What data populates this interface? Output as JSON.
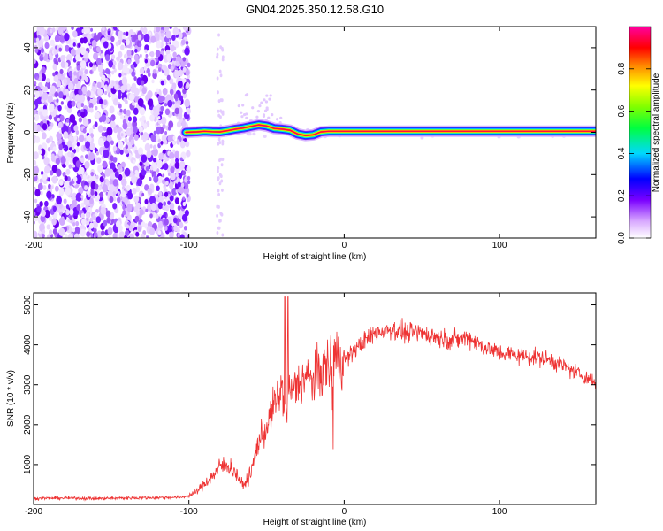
{
  "title": "GN04.2025.350.12.58.G10",
  "chart_data": [
    {
      "type": "heatmap",
      "xlabel": "Height of straight line (km)",
      "ylabel": "Frequency (Hz)",
      "xlim": [
        -200,
        162
      ],
      "ylim": [
        -50,
        50
      ],
      "xticks": [
        -200,
        -100,
        0,
        100
      ],
      "yticks": [
        -40,
        -20,
        0,
        20,
        40
      ],
      "colorbar": {
        "label": "Normalized spectral amplitude",
        "range": [
          0,
          1
        ],
        "ticks": [
          0,
          0.2,
          0.4,
          0.6,
          0.8
        ],
        "tick_labels": [
          "0.0",
          "0.2",
          "0.4",
          "0.6",
          "0.8"
        ]
      },
      "ridge": {
        "x": [
          -102,
          -95,
          -90,
          -85,
          -80,
          -75,
          -70,
          -65,
          -60,
          -55,
          -50,
          -45,
          -40,
          -35,
          -30,
          -25,
          -20,
          -15,
          -10,
          0,
          50,
          100,
          162
        ],
        "freq": [
          0,
          0.2,
          0.5,
          0.3,
          0.2,
          0.8,
          1.5,
          2.0,
          2.8,
          3.5,
          3.0,
          1.8,
          1.5,
          1.0,
          -0.8,
          -1.5,
          -1.2,
          0.2,
          0.5,
          0.5,
          0.5,
          0.5,
          0.5
        ]
      },
      "noise_region_x": [
        -200,
        -100
      ]
    },
    {
      "type": "line",
      "xlabel": "Height of straight line (km)",
      "ylabel": "SNR (10 * v/v)",
      "xlim": [
        -200,
        162
      ],
      "ylim": [
        0,
        5300
      ],
      "xticks": [
        -200,
        -100,
        0,
        100
      ],
      "yticks": [
        1000,
        2000,
        3000,
        4000,
        5000
      ],
      "series": [
        {
          "color": "#ee3333",
          "x": [
            -200,
            -180,
            -160,
            -140,
            -120,
            -105,
            -100,
            -95,
            -90,
            -85,
            -80,
            -75,
            -70,
            -65,
            -60,
            -55,
            -50,
            -45,
            -42,
            -40,
            -38,
            -35,
            -30,
            -25,
            -20,
            -15,
            -10,
            -5,
            0,
            10,
            20,
            30,
            40,
            50,
            60,
            70,
            80,
            90,
            100,
            110,
            120,
            130,
            140,
            150,
            162
          ],
          "y": [
            150,
            160,
            150,
            160,
            170,
            180,
            220,
            320,
            520,
            700,
            950,
            1000,
            800,
            450,
            800,
            1600,
            1900,
            2500,
            2700,
            3000,
            2300,
            2800,
            3000,
            3200,
            3100,
            3300,
            3500,
            3700,
            3600,
            4000,
            4300,
            4400,
            4300,
            4300,
            4200,
            4100,
            4200,
            3950,
            3800,
            3750,
            3700,
            3650,
            3500,
            3300,
            3050
          ]
        }
      ]
    }
  ]
}
